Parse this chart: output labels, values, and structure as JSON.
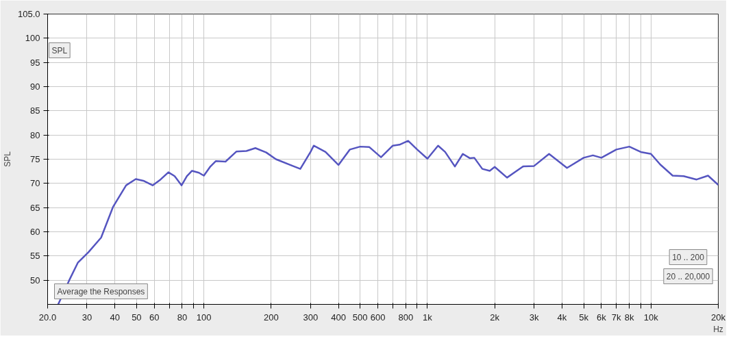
{
  "chart_data": {
    "type": "line",
    "ylabel": "SPL",
    "xlabel": "Hz",
    "x": [
      22.3,
      25,
      27.3,
      30.5,
      34.7,
      39.2,
      44.9,
      49.6,
      54,
      59,
      64,
      69.4,
      74,
      79.5,
      84,
      88.5,
      95,
      100,
      107,
      113,
      125,
      140,
      155,
      170,
      190,
      210,
      250,
      270,
      300,
      310,
      350,
      400,
      450,
      500,
      550,
      620,
      700,
      750,
      820,
      900,
      1000,
      1116,
      1200,
      1327,
      1440,
      1550,
      1620,
      1760,
      1900,
      2000,
      2270,
      2680,
      3000,
      3500,
      4210,
      5000,
      5500,
      6000,
      7000,
      8000,
      9000,
      10000,
      11000,
      12500,
      14000,
      16000,
      18000,
      20000
    ],
    "series": [
      {
        "color": "#5555c0",
        "values": [
          45,
          50,
          53.6,
          55.8,
          58.8,
          65.1,
          69.6,
          70.9,
          70.5,
          69.6,
          70.8,
          72.3,
          71.5,
          69.6,
          71.5,
          72.6,
          72.2,
          71.6,
          73.5,
          74.6,
          74.5,
          76.6,
          76.7,
          77.3,
          76.4,
          75,
          73.6,
          73,
          76.5,
          77.8,
          76.5,
          73.8,
          77,
          77.6,
          77.5,
          75.4,
          77.8,
          78,
          78.8,
          77,
          75.1,
          77.8,
          76.5,
          73.5,
          76.1,
          75.2,
          75.3,
          73,
          72.6,
          73.4,
          71.2,
          73.5,
          73.6,
          76.1,
          73.2,
          75.3,
          75.8,
          75.3,
          77,
          77.6,
          76.5,
          76.1,
          73.9,
          71.6,
          71.5,
          70.8,
          71.6,
          69.7
        ]
      }
    ],
    "log": "x",
    "xlim": [
      20,
      20000
    ],
    "ylim": [
      45,
      105
    ],
    "xticks": [
      {
        "value": 20,
        "label": "20.0"
      },
      30,
      40,
      50,
      60,
      {
        "value": 70,
        "label": null
      },
      80,
      {
        "value": 90,
        "label": null
      },
      100,
      200,
      300,
      400,
      500,
      600,
      {
        "value": 700,
        "label": null
      },
      800,
      {
        "value": 900,
        "label": null
      },
      {
        "value": 1000,
        "label": "1k"
      },
      {
        "value": 2000,
        "label": "2k"
      },
      {
        "value": 3000,
        "label": "3k"
      },
      {
        "value": 4000,
        "label": "4k"
      },
      {
        "value": 5000,
        "label": "5k"
      },
      {
        "value": 6000,
        "label": "6k"
      },
      {
        "value": 7000,
        "label": "7k"
      },
      {
        "value": 8000,
        "label": "8k"
      },
      {
        "value": 9000,
        "label": null
      },
      {
        "value": 10000,
        "label": "10k"
      },
      {
        "value": 20000,
        "label": "20k"
      }
    ],
    "yticks": [
      50,
      55,
      60,
      65,
      70,
      75,
      80,
      85,
      90,
      95,
      100,
      {
        "value": 105,
        "label": "105.0"
      }
    ],
    "grid": true,
    "marker": "none",
    "line_style": "solid",
    "annotations": [
      "SPL",
      "Average the Responses",
      "10 .. 200",
      "20 .. 20,000"
    ]
  }
}
